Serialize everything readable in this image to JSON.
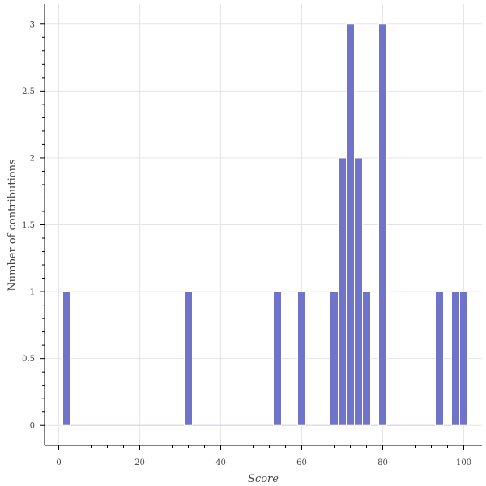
{
  "chart_data": {
    "type": "bar",
    "title": "",
    "xlabel": "Score",
    "ylabel": "Number of contributions",
    "xlim": [
      -3.5,
      104.5
    ],
    "ylim": [
      -0.15,
      3.15
    ],
    "bin_width": 2,
    "x_ticks": [
      0,
      20,
      40,
      60,
      80,
      100
    ],
    "y_ticks": [
      0,
      0.5,
      1,
      1.5,
      2,
      2.5,
      3
    ],
    "y_tick_labels": [
      "0",
      "0.5",
      "1",
      "1.5",
      "2",
      "2.5",
      "3"
    ],
    "grid": true,
    "bar_color": "#7074C8",
    "bar_edge_color": "#ffffff",
    "bins": [
      {
        "start": 1,
        "end": 3,
        "count": 1
      },
      {
        "start": 31,
        "end": 33,
        "count": 1
      },
      {
        "start": 53,
        "end": 55,
        "count": 1
      },
      {
        "start": 59,
        "end": 61,
        "count": 1
      },
      {
        "start": 67,
        "end": 69,
        "count": 1
      },
      {
        "start": 69,
        "end": 71,
        "count": 2
      },
      {
        "start": 71,
        "end": 73,
        "count": 3
      },
      {
        "start": 73,
        "end": 75,
        "count": 2
      },
      {
        "start": 75,
        "end": 77,
        "count": 1
      },
      {
        "start": 79,
        "end": 81,
        "count": 3
      },
      {
        "start": 93,
        "end": 95,
        "count": 1
      },
      {
        "start": 97,
        "end": 99,
        "count": 1
      },
      {
        "start": 99,
        "end": 101,
        "count": 1
      }
    ],
    "baseline_range": [
      1,
      101
    ],
    "baseline_color": "#E6D6EE"
  }
}
